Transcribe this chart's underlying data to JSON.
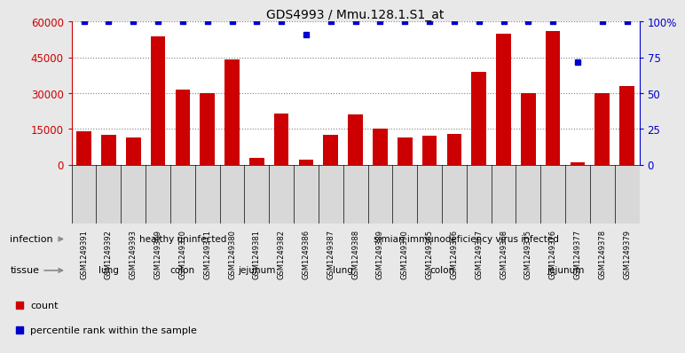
{
  "title": "GDS4993 / Mmu.128.1.S1_at",
  "samples": [
    "GSM1249391",
    "GSM1249392",
    "GSM1249393",
    "GSM1249369",
    "GSM1249370",
    "GSM1249371",
    "GSM1249380",
    "GSM1249381",
    "GSM1249382",
    "GSM1249386",
    "GSM1249387",
    "GSM1249388",
    "GSM1249389",
    "GSM1249390",
    "GSM1249365",
    "GSM1249366",
    "GSM1249367",
    "GSM1249368",
    "GSM1249375",
    "GSM1249376",
    "GSM1249377",
    "GSM1249378",
    "GSM1249379"
  ],
  "counts": [
    14000,
    12500,
    11500,
    54000,
    31500,
    30000,
    44000,
    3000,
    21500,
    2000,
    12500,
    21000,
    15000,
    11500,
    12000,
    13000,
    39000,
    55000,
    30000,
    56000,
    1000,
    30000,
    33000
  ],
  "percentiles": [
    100,
    100,
    100,
    100,
    100,
    100,
    100,
    100,
    100,
    91,
    100,
    100,
    100,
    100,
    100,
    100,
    100,
    100,
    100,
    100,
    72,
    100,
    100
  ],
  "infection_groups": [
    {
      "label": "healthy uninfected",
      "start": 0,
      "end": 9,
      "color": "#adf0ad"
    },
    {
      "label": "simian immunodeficiency virus infected",
      "start": 9,
      "end": 23,
      "color": "#55dd55"
    }
  ],
  "tissue_groups": [
    {
      "label": "lung",
      "start": 0,
      "end": 3,
      "color": "#f0d0f0"
    },
    {
      "label": "colon",
      "start": 3,
      "end": 6,
      "color": "#dd88dd"
    },
    {
      "label": "jejunum",
      "start": 6,
      "end": 9,
      "color": "#dd88dd"
    },
    {
      "label": "lung",
      "start": 9,
      "end": 13,
      "color": "#f0d0f0"
    },
    {
      "label": "colon",
      "start": 13,
      "end": 17,
      "color": "#dd88dd"
    },
    {
      "label": "jejunum",
      "start": 17,
      "end": 23,
      "color": "#dd88dd"
    }
  ],
  "bar_color": "#CC0000",
  "dot_color": "#0000CC",
  "left_ylim": [
    0,
    60000
  ],
  "right_ylim": [
    0,
    100
  ],
  "left_yticks": [
    0,
    15000,
    30000,
    45000,
    60000
  ],
  "right_yticks": [
    0,
    25,
    50,
    75,
    100
  ],
  "left_yticklabels": [
    "0",
    "15000",
    "30000",
    "45000",
    "60000"
  ],
  "right_yticklabels": [
    "0",
    "25",
    "50",
    "75",
    "100%"
  ],
  "xtick_bg": "#D8D8D8",
  "bg_color": "#E8E8E8",
  "plot_bg": "#FFFFFF"
}
